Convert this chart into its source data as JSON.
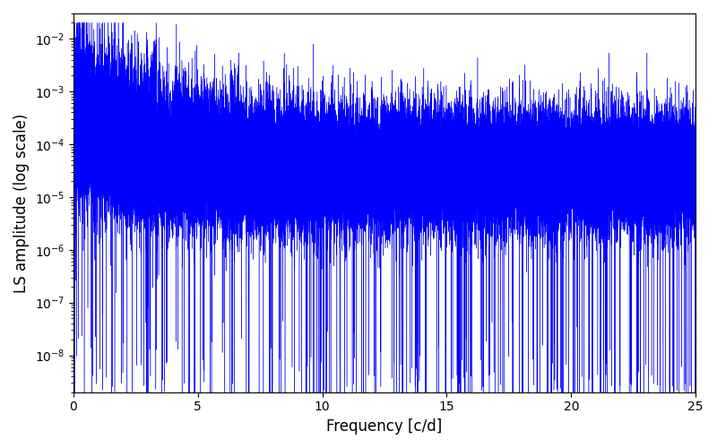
{
  "xlabel": "Frequency [c/d]",
  "ylabel": "LS amplitude (log scale)",
  "xlim": [
    0,
    25
  ],
  "ylim": [
    2e-09,
    0.03
  ],
  "line_color": "#0000ff",
  "background_color": "#ffffff",
  "xticks": [
    0,
    5,
    10,
    15,
    20,
    25
  ],
  "figsize": [
    8.0,
    5.0
  ],
  "dpi": 100
}
